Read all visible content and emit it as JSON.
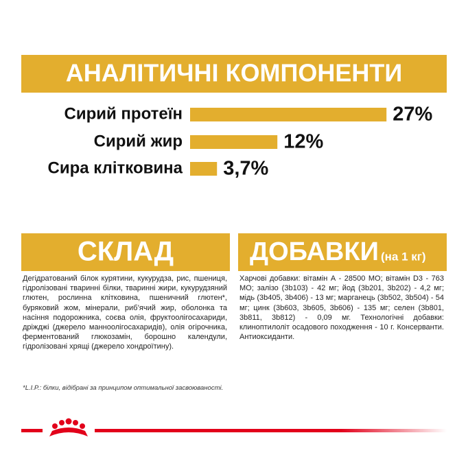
{
  "chart_data": {
    "type": "bar",
    "title": "АНАЛІТИЧНІ КОМПОНЕНТИ",
    "categories": [
      "Сирий протеїн",
      "Сирий жир",
      "Сира клітковина"
    ],
    "values": [
      27,
      12,
      3.7
    ],
    "value_labels": [
      "27%",
      "12%",
      "3,7%"
    ],
    "color": "#e3ae2e"
  },
  "composition": {
    "title": "СКЛАД",
    "text": "Дегідратований білок курятини, кукурудза, рис, пшениця, гідролізовані тваринні білки, тваринні жири, кукурудзяний глютен, рослинна клітковина, пшеничний глютен*, буряковий жом, мінерали, риб’ячий жир, оболонка та насіння подорожника, соєва олія, фруктоолігосахариди, дріжджі (джерело манноолігосахаридів), олія огірочника, ферментований глюкозамін, борошно календули, гідролізовані хрящі (джерело хондроїтину).",
    "footnote": "*L.I.P.: білки, відібрані за принципом оптимальної засвоюваності."
  },
  "additives": {
    "title": "ДОБАВКИ",
    "subtitle": "(на 1 кг)",
    "text": "Харчові добавки: вітамін А - 28500 МО; вітамін D3 - 763 МО; залізо (3b103) - 42 мг; йод (3b201, 3b202) - 4,2 мг; мідь (3b405, 3b406) - 13 мг; марганець (3b502, 3b504) - 54 мг; цинк (3b603, 3b605, 3b606) - 135 мг; селен (3b801, 3b811, 3b812) - 0,09 мг. Технологічні добавки: клиноптилоліт осадового походження - 10 г. Консерванти. Антиоксиданти."
  }
}
